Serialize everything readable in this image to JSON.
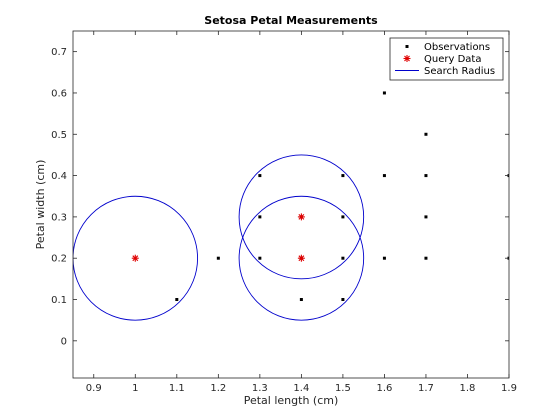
{
  "chart_data": {
    "type": "scatter",
    "title": "Setosa Petal Measurements",
    "xlabel": "Petal length (cm)",
    "ylabel": "Petal width (cm)",
    "xlim": [
      0.85,
      1.9
    ],
    "ylim": [
      -0.09,
      0.75
    ],
    "xticks": [
      "0.9",
      "1",
      "1.1",
      "1.2",
      "1.3",
      "1.4",
      "1.5",
      "1.6",
      "1.7",
      "1.8",
      "1.9"
    ],
    "yticks": [
      "0",
      "0.1",
      "0.2",
      "0.3",
      "0.4",
      "0.5",
      "0.6",
      "0.7"
    ],
    "grid": false,
    "legend_position": "top-right",
    "series": [
      {
        "name": "Observations",
        "marker": "dot",
        "color": "#000000",
        "points": [
          [
            1.1,
            0.1
          ],
          [
            1.2,
            0.2
          ],
          [
            1.3,
            0.4
          ],
          [
            1.3,
            0.3
          ],
          [
            1.3,
            0.2
          ],
          [
            1.4,
            0.3
          ],
          [
            1.4,
            0.2
          ],
          [
            1.4,
            0.1
          ],
          [
            1.5,
            0.4
          ],
          [
            1.5,
            0.3
          ],
          [
            1.5,
            0.2
          ],
          [
            1.5,
            0.1
          ],
          [
            1.6,
            0.6
          ],
          [
            1.6,
            0.4
          ],
          [
            1.6,
            0.2
          ],
          [
            1.7,
            0.5
          ],
          [
            1.7,
            0.4
          ],
          [
            1.7,
            0.3
          ],
          [
            1.7,
            0.2
          ],
          [
            1.9,
            0.4
          ],
          [
            1.9,
            0.2
          ]
        ]
      },
      {
        "name": "Query Data",
        "marker": "asterisk",
        "color": "#e00000",
        "points": [
          [
            1.0,
            0.2
          ],
          [
            1.4,
            0.3
          ],
          [
            1.4,
            0.2
          ]
        ]
      },
      {
        "name": "Search Radius",
        "marker": "circle-outline",
        "color": "#0000cc",
        "radius": 0.15,
        "centers": [
          [
            1.0,
            0.2
          ],
          [
            1.4,
            0.3
          ],
          [
            1.4,
            0.2
          ]
        ]
      }
    ]
  }
}
